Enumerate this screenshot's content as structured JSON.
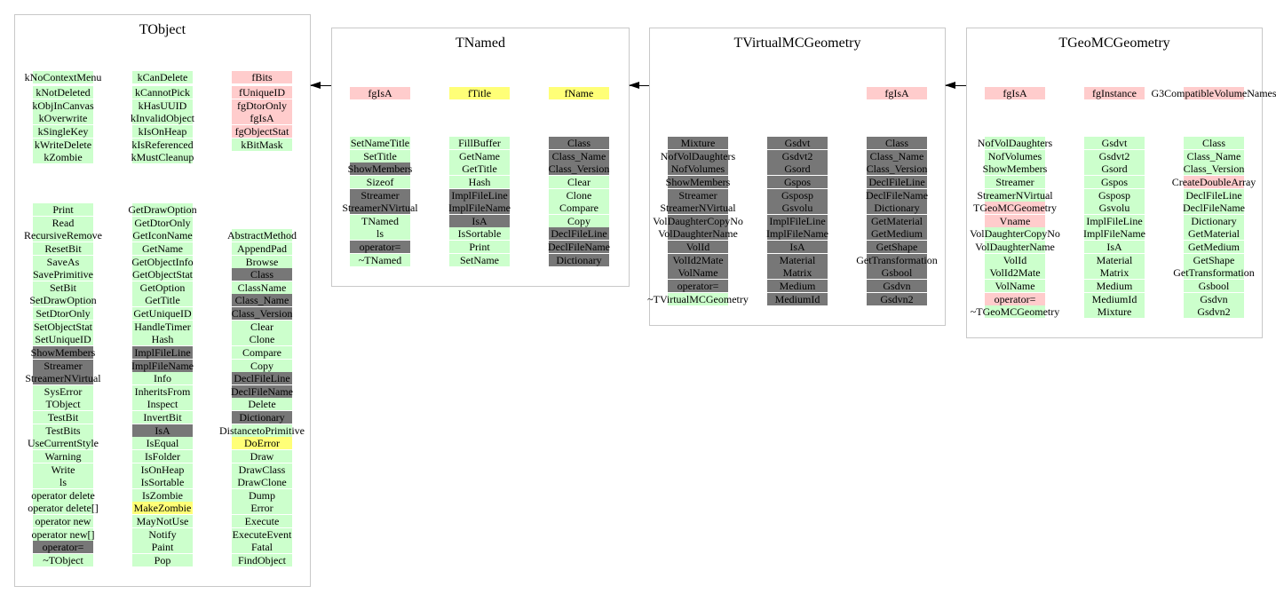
{
  "palette": {
    "g": "#ccffcc",
    "p": "#ffcccc",
    "y": "#ffff77",
    "d": "#777777"
  },
  "arrow_icon": "inheritance-arrow-icon",
  "classes": [
    {
      "title": "TObject",
      "sections": [
        [
          [
            [
              "kNoContextMenu",
              "g"
            ]
          ],
          [
            [
              "kCanDelete",
              "g"
            ]
          ],
          [
            [
              "fBits",
              "p"
            ]
          ]
        ],
        [
          [
            [
              "kNotDeleted",
              "g"
            ],
            [
              "kObjInCanvas",
              "g"
            ],
            [
              "kOverwrite",
              "g"
            ],
            [
              "kSingleKey",
              "g"
            ],
            [
              "kWriteDelete",
              "g"
            ],
            [
              "kZombie",
              "g"
            ]
          ],
          [
            [
              "kCannotPick",
              "g"
            ],
            [
              "kHasUUID",
              "g"
            ],
            [
              "kInvalidObject",
              "g"
            ],
            [
              "kIsOnHeap",
              "g"
            ],
            [
              "kIsReferenced",
              "g"
            ],
            [
              "kMustCleanup",
              "g"
            ]
          ],
          [
            [
              "fUniqueID",
              "p"
            ],
            [
              "fgDtorOnly",
              "p"
            ],
            [
              "fgIsA",
              "p"
            ],
            [
              "fgObjectStat",
              "p"
            ],
            [
              "kBitMask",
              "g"
            ]
          ]
        ],
        [
          [
            [
              "Print",
              "g"
            ],
            [
              "Read",
              "g"
            ],
            [
              "RecursiveRemove",
              "g"
            ],
            [
              "ResetBit",
              "g"
            ],
            [
              "SaveAs",
              "g"
            ],
            [
              "SavePrimitive",
              "g"
            ],
            [
              "SetBit",
              "g"
            ],
            [
              "SetDrawOption",
              "g"
            ],
            [
              "SetDtorOnly",
              "g"
            ],
            [
              "SetObjectStat",
              "g"
            ],
            [
              "SetUniqueID",
              "g"
            ],
            [
              "ShowMembers",
              "d"
            ],
            [
              "Streamer",
              "d"
            ],
            [
              "StreamerNVirtual",
              "d"
            ],
            [
              "SysError",
              "g"
            ],
            [
              "TObject",
              "g"
            ],
            [
              "TestBit",
              "g"
            ],
            [
              "TestBits",
              "g"
            ],
            [
              "UseCurrentStyle",
              "g"
            ],
            [
              "Warning",
              "g"
            ],
            [
              "Write",
              "g"
            ],
            [
              "ls",
              "g"
            ],
            [
              "operator delete",
              "g"
            ],
            [
              "operator delete[]",
              "g"
            ],
            [
              "operator new",
              "g"
            ],
            [
              "operator new[]",
              "g"
            ],
            [
              "operator=",
              "d"
            ],
            [
              "~TObject",
              "g"
            ]
          ],
          [
            [
              "GetDrawOption",
              "g"
            ],
            [
              "GetDtorOnly",
              "g"
            ],
            [
              "GetIconName",
              "g"
            ],
            [
              "GetName",
              "g"
            ],
            [
              "GetObjectInfo",
              "g"
            ],
            [
              "GetObjectStat",
              "g"
            ],
            [
              "GetOption",
              "g"
            ],
            [
              "GetTitle",
              "g"
            ],
            [
              "GetUniqueID",
              "g"
            ],
            [
              "HandleTimer",
              "g"
            ],
            [
              "Hash",
              "g"
            ],
            [
              "ImplFileLine",
              "d"
            ],
            [
              "ImplFileName",
              "d"
            ],
            [
              "Info",
              "g"
            ],
            [
              "InheritsFrom",
              "g"
            ],
            [
              "Inspect",
              "g"
            ],
            [
              "InvertBit",
              "g"
            ],
            [
              "IsA",
              "d"
            ],
            [
              "IsEqual",
              "g"
            ],
            [
              "IsFolder",
              "g"
            ],
            [
              "IsOnHeap",
              "g"
            ],
            [
              "IsSortable",
              "g"
            ],
            [
              "IsZombie",
              "g"
            ],
            [
              "MakeZombie",
              "y"
            ],
            [
              "MayNotUse",
              "g"
            ],
            [
              "Notify",
              "g"
            ],
            [
              "Paint",
              "g"
            ],
            [
              "Pop",
              "g"
            ]
          ],
          [
            [
              "AbstractMethod",
              "g"
            ],
            [
              "AppendPad",
              "g"
            ],
            [
              "Browse",
              "g"
            ],
            [
              "Class",
              "d"
            ],
            [
              "ClassName",
              "g"
            ],
            [
              "Class_Name",
              "d"
            ],
            [
              "Class_Version",
              "d"
            ],
            [
              "Clear",
              "g"
            ],
            [
              "Clone",
              "g"
            ],
            [
              "Compare",
              "g"
            ],
            [
              "Copy",
              "g"
            ],
            [
              "DeclFileLine",
              "d"
            ],
            [
              "DeclFileName",
              "d"
            ],
            [
              "Delete",
              "g"
            ],
            [
              "Dictionary",
              "d"
            ],
            [
              "DistancetoPrimitive",
              "g"
            ],
            [
              "DoError",
              "y"
            ],
            [
              "Draw",
              "g"
            ],
            [
              "DrawClass",
              "g"
            ],
            [
              "DrawClone",
              "g"
            ],
            [
              "Dump",
              "g"
            ],
            [
              "Error",
              "g"
            ],
            [
              "Execute",
              "g"
            ],
            [
              "ExecuteEvent",
              "g"
            ],
            [
              "Fatal",
              "g"
            ],
            [
              "FindObject",
              "g"
            ]
          ]
        ]
      ]
    },
    {
      "title": "TNamed",
      "sections": [
        [
          [
            [
              "fgIsA",
              "p"
            ]
          ],
          [
            [
              "fTitle",
              "y"
            ]
          ],
          [
            [
              "fName",
              "y"
            ]
          ]
        ],
        [
          [
            [
              "SetNameTitle",
              "g"
            ],
            [
              "SetTitle",
              "g"
            ],
            [
              "ShowMembers",
              "d"
            ],
            [
              "Sizeof",
              "g"
            ],
            [
              "Streamer",
              "d"
            ],
            [
              "StreamerNVirtual",
              "d"
            ],
            [
              "TNamed",
              "g"
            ],
            [
              "ls",
              "g"
            ],
            [
              "operator=",
              "d"
            ],
            [
              "~TNamed",
              "g"
            ]
          ],
          [
            [
              "FillBuffer",
              "g"
            ],
            [
              "GetName",
              "g"
            ],
            [
              "GetTitle",
              "g"
            ],
            [
              "Hash",
              "g"
            ],
            [
              "ImplFileLine",
              "d"
            ],
            [
              "ImplFileName",
              "d"
            ],
            [
              "IsA",
              "d"
            ],
            [
              "IsSortable",
              "g"
            ],
            [
              "Print",
              "g"
            ],
            [
              "SetName",
              "g"
            ]
          ],
          [
            [
              "Class",
              "d"
            ],
            [
              "Class_Name",
              "d"
            ],
            [
              "Class_Version",
              "d"
            ],
            [
              "Clear",
              "g"
            ],
            [
              "Clone",
              "g"
            ],
            [
              "Compare",
              "g"
            ],
            [
              "Copy",
              "g"
            ],
            [
              "DeclFileLine",
              "d"
            ],
            [
              "DeclFileName",
              "d"
            ],
            [
              "Dictionary",
              "d"
            ]
          ]
        ]
      ]
    },
    {
      "title": "TVirtualMCGeometry",
      "sections": [
        [
          [],
          [],
          [
            [
              "fgIsA",
              "p"
            ]
          ]
        ],
        [
          [
            [
              "Mixture",
              "d"
            ],
            [
              "NofVolDaughters",
              "d"
            ],
            [
              "NofVolumes",
              "d"
            ],
            [
              "ShowMembers",
              "d"
            ],
            [
              "Streamer",
              "d"
            ],
            [
              "StreamerNVirtual",
              "d"
            ],
            [
              "VolDaughterCopyNo",
              "d"
            ],
            [
              "VolDaughterName",
              "d"
            ],
            [
              "VolId",
              "d"
            ],
            [
              "VolId2Mate",
              "d"
            ],
            [
              "VolName",
              "d"
            ],
            [
              "operator=",
              "d"
            ],
            [
              "~TVirtualMCGeometry",
              "g"
            ]
          ],
          [
            [
              "Gsdvt",
              "d"
            ],
            [
              "Gsdvt2",
              "d"
            ],
            [
              "Gsord",
              "d"
            ],
            [
              "Gspos",
              "d"
            ],
            [
              "Gsposp",
              "d"
            ],
            [
              "Gsvolu",
              "d"
            ],
            [
              "ImplFileLine",
              "d"
            ],
            [
              "ImplFileName",
              "d"
            ],
            [
              "IsA",
              "d"
            ],
            [
              "Material",
              "d"
            ],
            [
              "Matrix",
              "d"
            ],
            [
              "Medium",
              "d"
            ],
            [
              "MediumId",
              "d"
            ]
          ],
          [
            [
              "Class",
              "d"
            ],
            [
              "Class_Name",
              "d"
            ],
            [
              "Class_Version",
              "d"
            ],
            [
              "DeclFileLine",
              "d"
            ],
            [
              "DeclFileName",
              "d"
            ],
            [
              "Dictionary",
              "d"
            ],
            [
              "GetMaterial",
              "d"
            ],
            [
              "GetMedium",
              "d"
            ],
            [
              "GetShape",
              "d"
            ],
            [
              "GetTransformation",
              "d"
            ],
            [
              "Gsbool",
              "d"
            ],
            [
              "Gsdvn",
              "d"
            ],
            [
              "Gsdvn2",
              "d"
            ]
          ]
        ]
      ]
    },
    {
      "title": "TGeoMCGeometry",
      "sections": [
        [
          [
            [
              "fgIsA",
              "p"
            ]
          ],
          [
            [
              "fgInstance",
              "p"
            ]
          ],
          [
            [
              "G3CompatibleVolumeNames",
              "p"
            ]
          ]
        ],
        [
          [
            [
              "NofVolDaughters",
              "g"
            ],
            [
              "NofVolumes",
              "g"
            ],
            [
              "ShowMembers",
              "g"
            ],
            [
              "Streamer",
              "g"
            ],
            [
              "StreamerNVirtual",
              "g"
            ],
            [
              "TGeoMCGeometry",
              "p"
            ],
            [
              "Vname",
              "p"
            ],
            [
              "VolDaughterCopyNo",
              "g"
            ],
            [
              "VolDaughterName",
              "g"
            ],
            [
              "VolId",
              "g"
            ],
            [
              "VolId2Mate",
              "g"
            ],
            [
              "VolName",
              "g"
            ],
            [
              "operator=",
              "p"
            ],
            [
              "~TGeoMCGeometry",
              "g"
            ]
          ],
          [
            [
              "Gsdvt",
              "g"
            ],
            [
              "Gsdvt2",
              "g"
            ],
            [
              "Gsord",
              "g"
            ],
            [
              "Gspos",
              "g"
            ],
            [
              "Gsposp",
              "g"
            ],
            [
              "Gsvolu",
              "g"
            ],
            [
              "ImplFileLine",
              "g"
            ],
            [
              "ImplFileName",
              "g"
            ],
            [
              "IsA",
              "g"
            ],
            [
              "Material",
              "g"
            ],
            [
              "Matrix",
              "g"
            ],
            [
              "Medium",
              "g"
            ],
            [
              "MediumId",
              "g"
            ],
            [
              "Mixture",
              "g"
            ]
          ],
          [
            [
              "Class",
              "g"
            ],
            [
              "Class_Name",
              "g"
            ],
            [
              "Class_Version",
              "g"
            ],
            [
              "CreateDoubleArray",
              "p"
            ],
            [
              "DeclFileLine",
              "g"
            ],
            [
              "DeclFileName",
              "g"
            ],
            [
              "Dictionary",
              "g"
            ],
            [
              "GetMaterial",
              "g"
            ],
            [
              "GetMedium",
              "g"
            ],
            [
              "GetShape",
              "g"
            ],
            [
              "GetTransformation",
              "g"
            ],
            [
              "Gsbool",
              "g"
            ],
            [
              "Gsdvn",
              "g"
            ],
            [
              "Gsdvn2",
              "g"
            ]
          ]
        ]
      ]
    }
  ]
}
